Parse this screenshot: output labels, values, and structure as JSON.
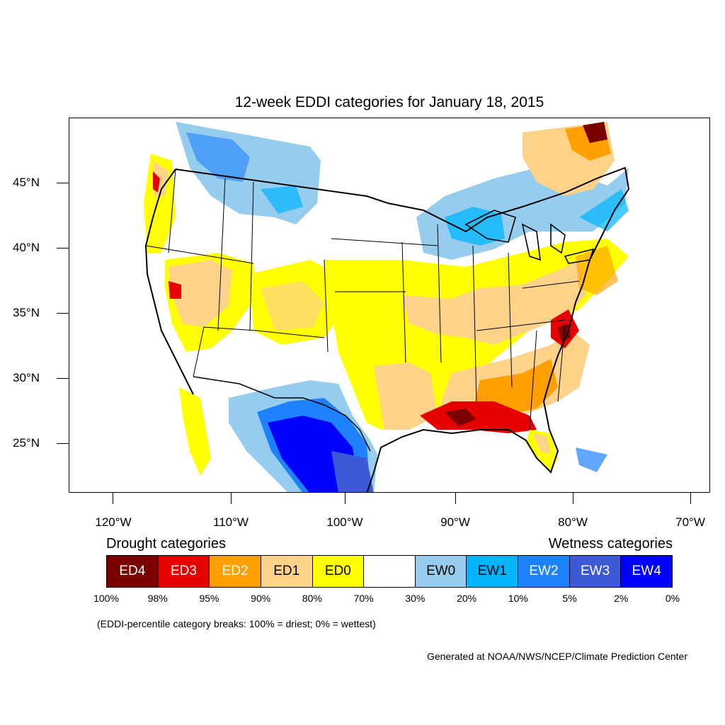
{
  "title": "12-week EDDI categories for January 18, 2015",
  "lat_labels": [
    "45°N",
    "40°N",
    "35°N",
    "30°N",
    "25°N"
  ],
  "lon_labels": [
    "120°W",
    "110°W",
    "100°W",
    "90°W",
    "80°W",
    "70°W"
  ],
  "legend": {
    "drought_heading": "Drought categories",
    "wetness_heading": "Wetness categories",
    "categories": [
      {
        "label": "ED4",
        "color": "#7a0000",
        "text_color": "#ffffff"
      },
      {
        "label": "ED3",
        "color": "#e60000",
        "text_color": "#ffffff"
      },
      {
        "label": "ED2",
        "color": "#ffa000",
        "text_color": "#ffffff"
      },
      {
        "label": "ED1",
        "color": "#fdd38a",
        "text_color": "#000000"
      },
      {
        "label": "ED0",
        "color": "#ffff00",
        "text_color": "#000000"
      },
      {
        "label": "",
        "color": "#ffffff",
        "text_color": "#000000"
      },
      {
        "label": "EW0",
        "color": "#96cdee",
        "text_color": "#000000"
      },
      {
        "label": "EW1",
        "color": "#00b4ff",
        "text_color": "#000000"
      },
      {
        "label": "EW2",
        "color": "#1e82ff",
        "text_color": "#ffffff"
      },
      {
        "label": "EW3",
        "color": "#3c5ad8",
        "text_color": "#ffffff"
      },
      {
        "label": "EW4",
        "color": "#0000ff",
        "text_color": "#ffffff"
      }
    ],
    "breaks": [
      "100%",
      "98%",
      "95%",
      "90%",
      "80%",
      "70%",
      "30%",
      "20%",
      "10%",
      "5%",
      "2%",
      "0%"
    ]
  },
  "note": "(EDDI-percentile category breaks: 100% = driest; 0% = wettest)",
  "credit": "Generated at NOAA/NWS/NCEP/Climate Prediction Center"
}
